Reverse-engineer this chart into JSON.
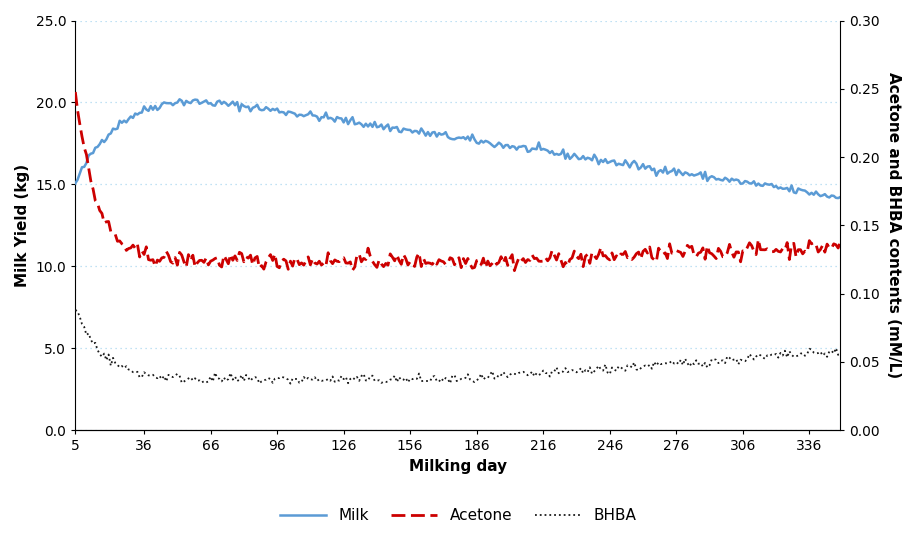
{
  "title": "",
  "xlabel": "Milking day",
  "ylabel_left": "Milk Yield (kg)",
  "ylabel_right": "Acetone and BHBA contents (mM/L)",
  "ylim_left": [
    0.0,
    25.0
  ],
  "ylim_right": [
    0.0,
    0.3
  ],
  "yticks_left": [
    0.0,
    5.0,
    10.0,
    15.0,
    20.0,
    25.0
  ],
  "yticks_right": [
    0.0,
    0.05,
    0.1,
    0.15,
    0.2,
    0.25,
    0.3
  ],
  "xticks": [
    5,
    36,
    66,
    96,
    126,
    156,
    186,
    216,
    246,
    276,
    306,
    336
  ],
  "xlim": [
    5,
    350
  ],
  "grid_color": "#add8f0",
  "milk_color": "#5b9bd5",
  "acetone_color": "#cc0000",
  "bhba_color": "#1a1a1a",
  "bg_color": "#ffffff",
  "legend_milk": "Milk",
  "legend_acetone": "Acetone",
  "legend_bhba": "BHBA",
  "noise_seed": 42
}
